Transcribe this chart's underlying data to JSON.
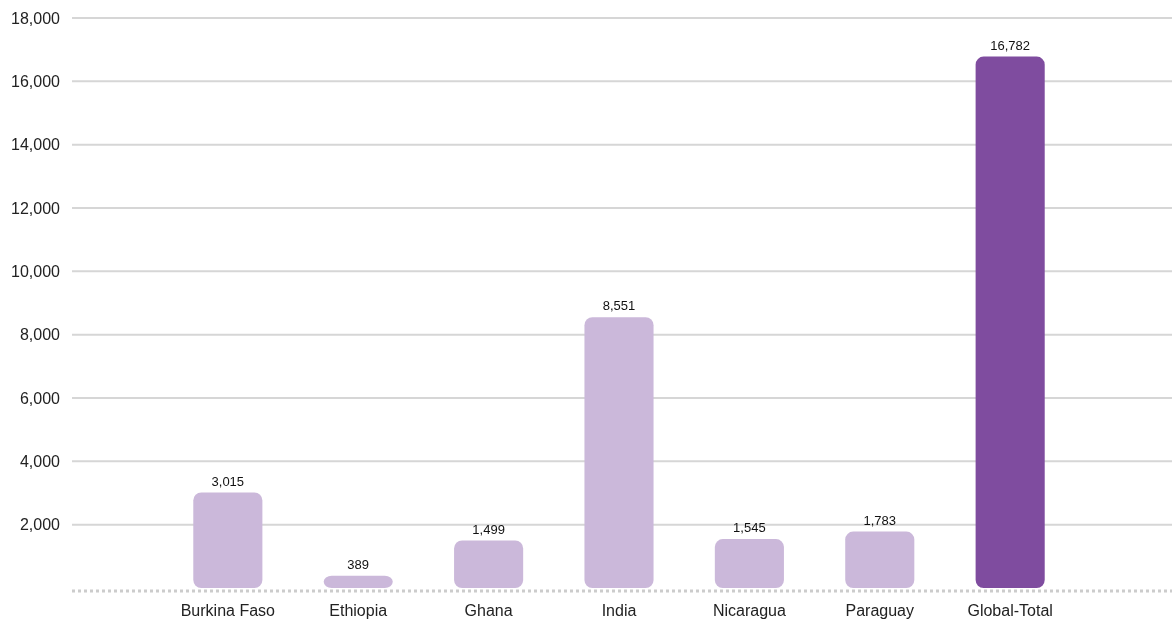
{
  "chart_data": {
    "type": "bar",
    "categories": [
      "Burkina Faso",
      "Ethiopia",
      "Ghana",
      "India",
      "Nicaragua",
      "Paraguay",
      "Global-Total"
    ],
    "values": [
      3015,
      389,
      1499,
      8551,
      1545,
      1783,
      16782
    ],
    "colors": [
      "#cbb8da",
      "#cbb8da",
      "#cbb8da",
      "#cbb8da",
      "#cbb8da",
      "#cbb8da",
      "#7f4c9f"
    ],
    "ylim": [
      0,
      18000
    ],
    "yticks": [
      {
        "value": 2000,
        "label": "2,000"
      },
      {
        "value": 4000,
        "label": "4,000"
      },
      {
        "value": 6000,
        "label": "6,000"
      },
      {
        "value": 8000,
        "label": "8,000"
      },
      {
        "value": 10000,
        "label": "10,000"
      },
      {
        "value": 12000,
        "label": "12,000"
      },
      {
        "value": 14000,
        "label": "14,000"
      },
      {
        "value": 16000,
        "label": "16,000"
      },
      {
        "value": 18000,
        "label": "18,000"
      }
    ],
    "value_labels": [
      "3,015",
      "389",
      "1,499",
      "8,551",
      "1,545",
      "1,783",
      "16,782"
    ],
    "grid": "y"
  }
}
